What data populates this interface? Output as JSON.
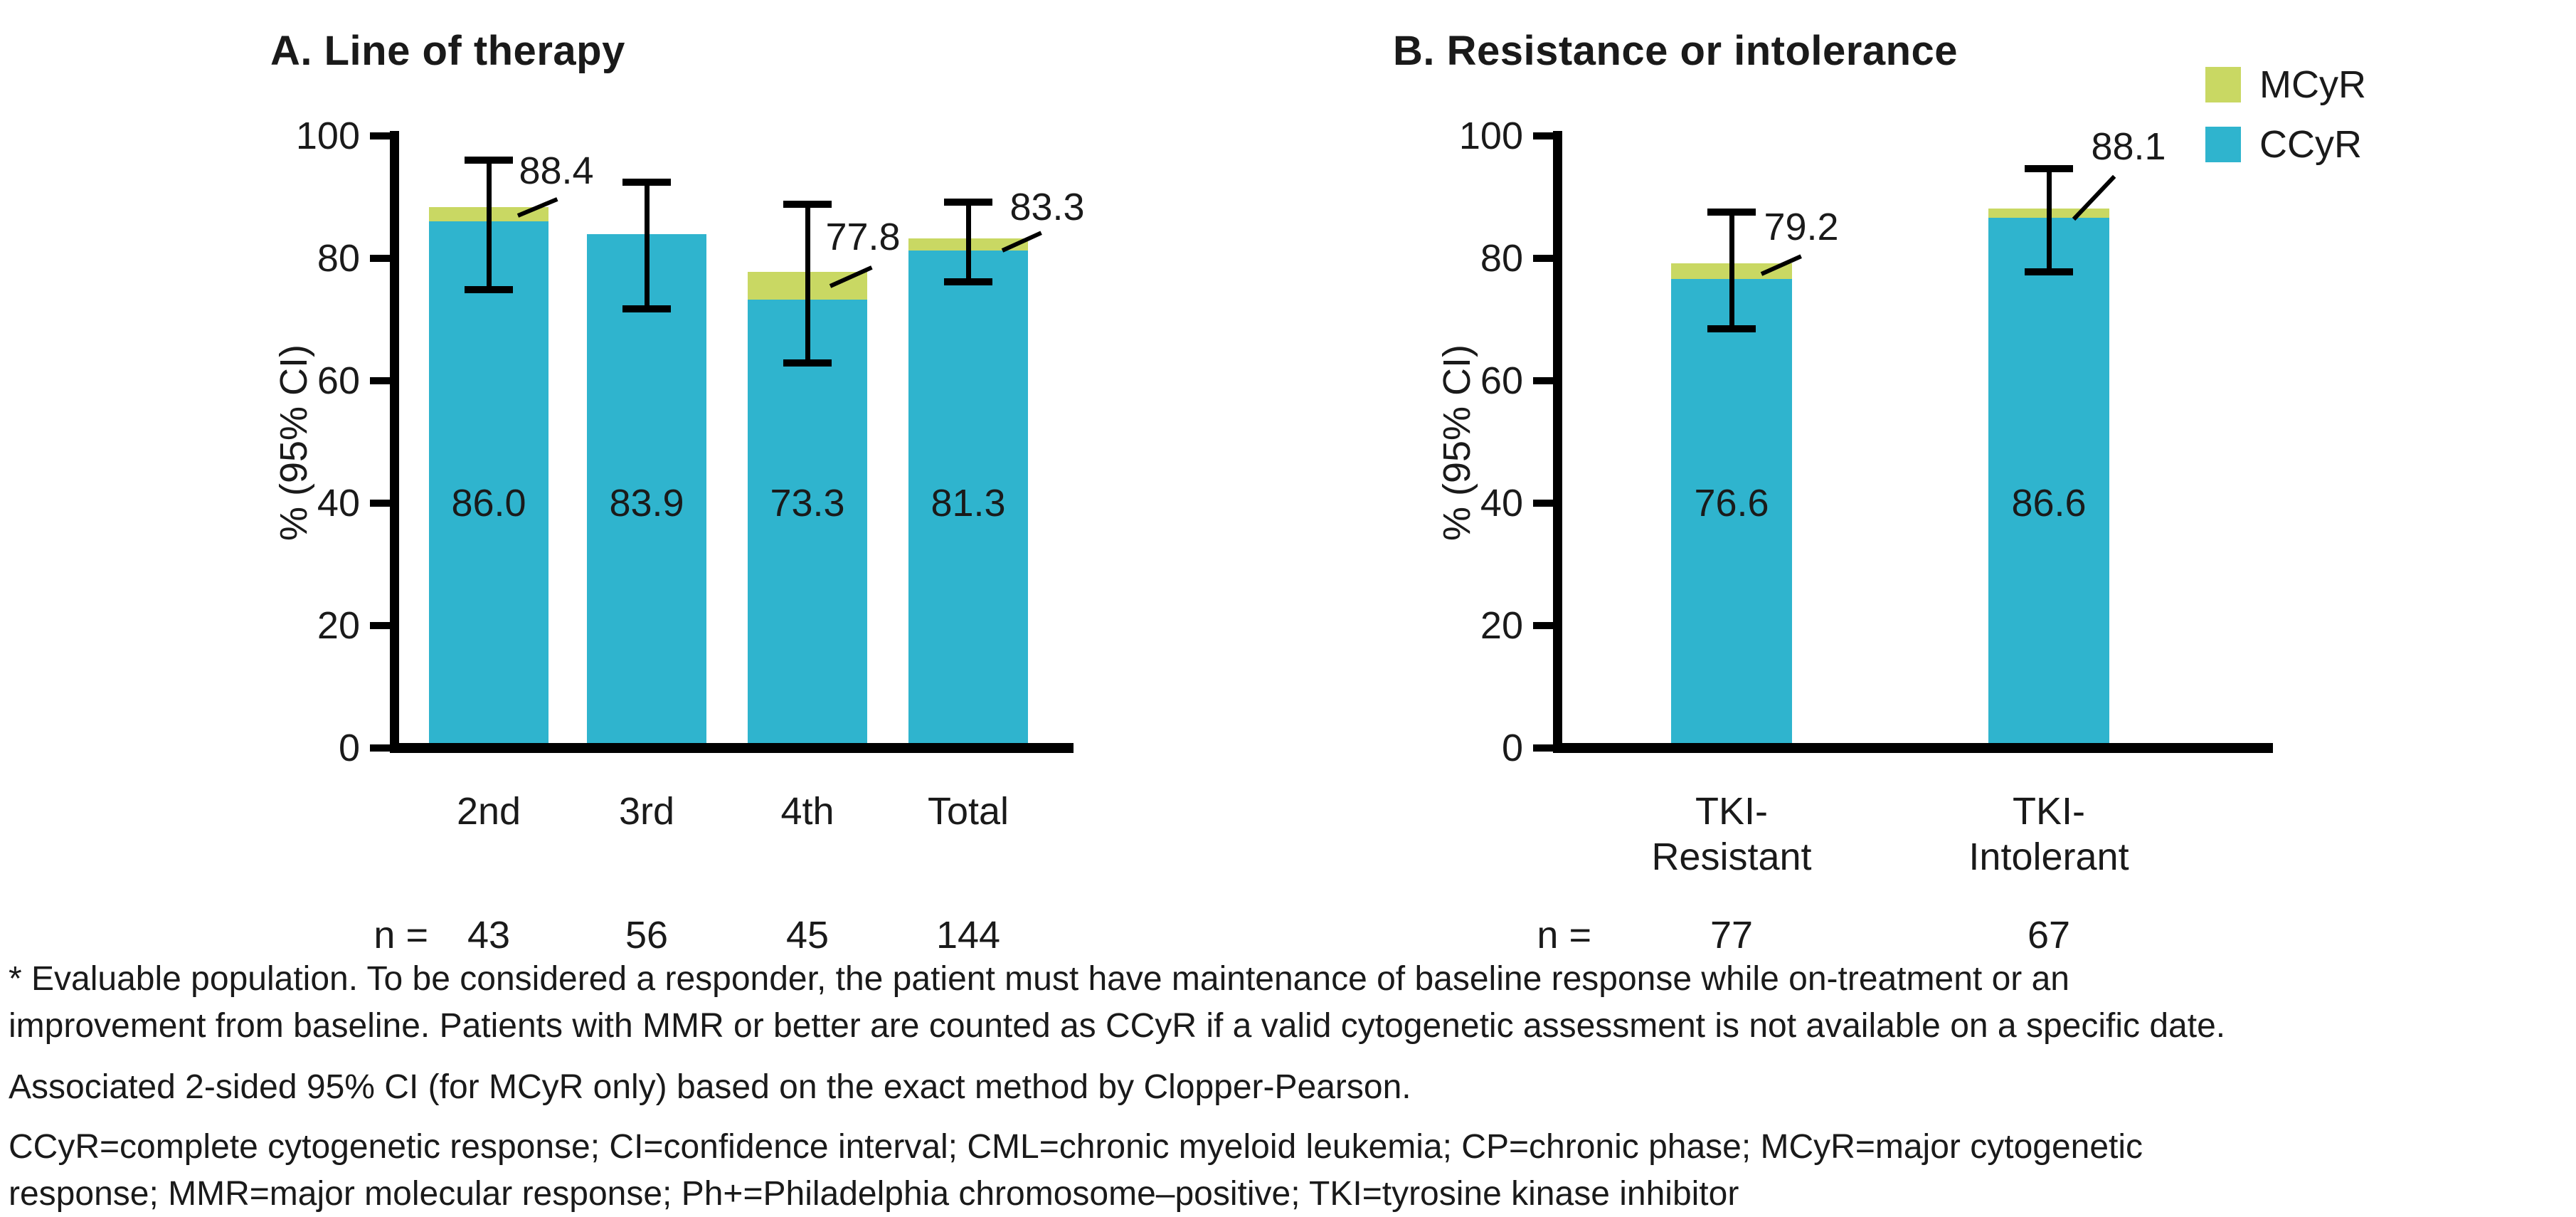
{
  "colors": {
    "ccyr": "#2FB4CE",
    "mcyr": "#C9D863",
    "axis": "#000000",
    "text": "#1A1A1A"
  },
  "legend": {
    "items": [
      {
        "label": "MCyR",
        "color": "#C9D863"
      },
      {
        "label": "CCyR",
        "color": "#2FB4CE"
      }
    ]
  },
  "chart_data": [
    {
      "type": "bar",
      "panel": "A",
      "title": "A. Line of therapy",
      "ylabel": "% (95% CI)",
      "ylim": [
        0,
        100
      ],
      "yticks": [
        0,
        20,
        40,
        60,
        80,
        100
      ],
      "grid": false,
      "stacked": true,
      "legend_position": "top-right",
      "categories": [
        "2nd",
        "3rd",
        "4th",
        "Total"
      ],
      "n_label": "n =",
      "n": [
        43,
        56,
        45,
        144
      ],
      "series": [
        {
          "name": "CCyR",
          "values": [
            86.0,
            83.9,
            73.3,
            81.3
          ]
        },
        {
          "name": "MCyR",
          "values": [
            88.4,
            83.9,
            77.8,
            83.3
          ]
        }
      ],
      "bar_value_labels": [
        "86.0",
        "83.9",
        "73.3",
        "81.3"
      ],
      "mcyr_callout_labels": [
        "88.4",
        null,
        "77.8",
        "83.3"
      ],
      "ci_95_mcyr": [
        [
          74.9,
          96.1
        ],
        [
          71.7,
          92.4
        ],
        [
          62.9,
          88.8
        ],
        [
          76.2,
          89.2
        ]
      ]
    },
    {
      "type": "bar",
      "panel": "B",
      "title": "B. Resistance or intolerance",
      "ylabel": "% (95% CI)",
      "ylim": [
        0,
        100
      ],
      "yticks": [
        0,
        20,
        40,
        60,
        80,
        100
      ],
      "grid": false,
      "stacked": true,
      "categories": [
        "TKI-\nResistant",
        "TKI-\nIntolerant"
      ],
      "n_label": "n =",
      "n": [
        77,
        67
      ],
      "series": [
        {
          "name": "CCyR",
          "values": [
            76.6,
            86.6
          ]
        },
        {
          "name": "MCyR",
          "values": [
            79.2,
            88.1
          ]
        }
      ],
      "bar_value_labels": [
        "76.6",
        "86.6"
      ],
      "mcyr_callout_labels": [
        "79.2",
        "88.1"
      ],
      "ci_95_mcyr": [
        [
          68.5,
          87.6
        ],
        [
          77.8,
          94.7
        ]
      ]
    }
  ],
  "footnotes": [
    {
      "lines": [
        "* Evaluable population. To be considered a responder, the patient must have maintenance of baseline response while on-treatment or an",
        "improvement from baseline. Patients with MMR or better are counted as CCyR if a valid cytogenetic assessment is not available on a specific date."
      ]
    },
    {
      "lines": [
        "Associated 2-sided 95% CI (for MCyR only) based on the exact method by Clopper-Pearson."
      ]
    },
    {
      "lines": [
        "CCyR=complete cytogenetic response; CI=confidence interval; CML=chronic myeloid leukemia; CP=chronic phase; MCyR=major cytogenetic",
        "response; MMR=major molecular response; Ph+=Philadelphia chromosome–positive; TKI=tyrosine kinase inhibitor"
      ]
    }
  ]
}
